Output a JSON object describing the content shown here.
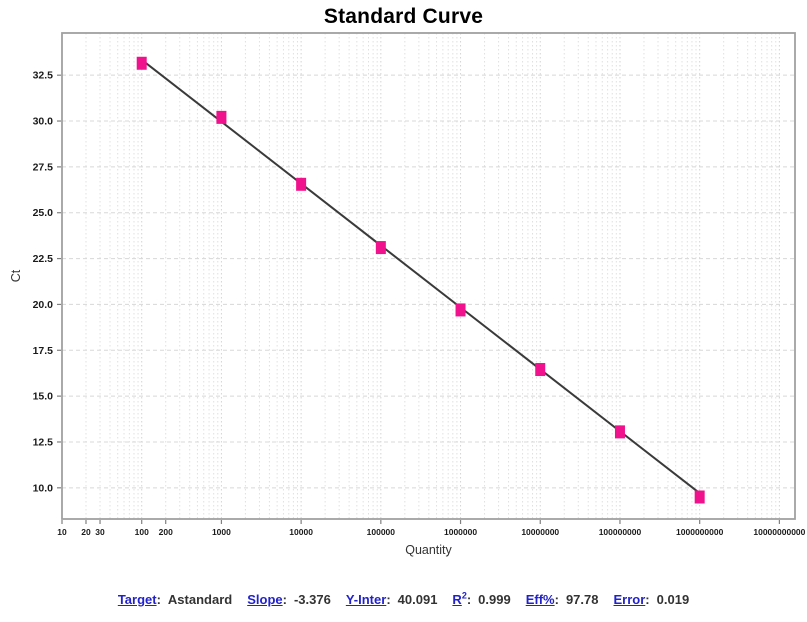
{
  "title": "Standard Curve",
  "colors": {
    "point": "#F0118C",
    "fit_line": "#3A3A3A",
    "grid_minor": "#E0E0E0",
    "grid_decade": "#D4D4D4",
    "grid_major_h": "#D8D8D8",
    "plot_border": "#A0A0A0",
    "tick": "#808080",
    "tick_label": "#1A1A1A",
    "axis_label": "#333333",
    "stat_label_blue": "#2222CC",
    "stat_value": "#333333"
  },
  "chart_data": {
    "type": "scatter",
    "title": "Standard Curve",
    "xlabel": "Quantity",
    "ylabel": "Ct",
    "x_scale": "log10",
    "x_range": [
      10,
      15700000000
    ],
    "y_range": [
      8.3,
      34.8
    ],
    "grid": {
      "horizontal": "dashed at each major y tick",
      "vertical": "dotted log minors and decades"
    },
    "legend": "none",
    "y_ticks": [
      10.0,
      12.5,
      15.0,
      17.5,
      20.0,
      22.5,
      25.0,
      27.5,
      30.0,
      32.5
    ],
    "x_ticks": [
      {
        "value": 10,
        "label": "10"
      },
      {
        "value": 20,
        "label": "20"
      },
      {
        "value": 30,
        "label": "30"
      },
      {
        "value": 100,
        "label": "100"
      },
      {
        "value": 200,
        "label": "200"
      },
      {
        "value": 1000,
        "label": "1000"
      },
      {
        "value": 10000,
        "label": "10000"
      },
      {
        "value": 100000,
        "label": "100000"
      },
      {
        "value": 1000000,
        "label": "1000000"
      },
      {
        "value": 10000000,
        "label": "10000000"
      },
      {
        "value": 100000000,
        "label": "100000000"
      },
      {
        "value": 1000000000,
        "label": "1000000000"
      },
      {
        "value": 10000000000,
        "label": "10000000000"
      }
    ],
    "series": [
      {
        "name": "Astandard",
        "marker": "square",
        "x": [
          100,
          1000,
          10000,
          100000,
          1000000,
          10000000,
          100000000,
          1000000000
        ],
        "y": [
          33.15,
          30.2,
          26.55,
          23.1,
          19.7,
          16.45,
          13.05,
          9.5
        ]
      }
    ],
    "fit_line": {
      "slope": -3.376,
      "y_intercept": 40.091,
      "x_start": 100,
      "x_end": 1000000000
    }
  },
  "stats": {
    "colon": ":",
    "items": [
      {
        "label": "Target",
        "value": "Astandard"
      },
      {
        "label": "Slope",
        "value": "-3.376"
      },
      {
        "label": "Y-Inter",
        "value": "40.091"
      },
      {
        "label": "R",
        "sup": "2",
        "value": "0.999"
      },
      {
        "label": "Eff%",
        "value": "97.78"
      },
      {
        "label": "Error",
        "value": "0.019"
      }
    ]
  }
}
